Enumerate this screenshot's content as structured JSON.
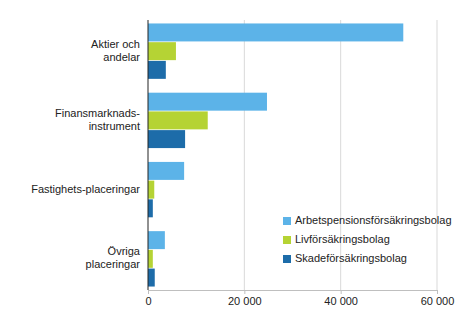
{
  "chart_data": {
    "type": "bar",
    "orientation": "horizontal",
    "categories": [
      "Aktier och andelar",
      "Finansmarknads-instrument",
      "Fastighets-placeringar",
      "Övriga placeringar"
    ],
    "series": [
      {
        "name": "Arbetspensionsförsäkringsbolag",
        "color": "#5cb3e8",
        "values": [
          53000,
          24700,
          7500,
          3500
        ]
      },
      {
        "name": "Livförsäkringsbolag",
        "color": "#b5d334",
        "values": [
          5800,
          12400,
          1300,
          1000
        ]
      },
      {
        "name": "Skadeförsäkringsbolag",
        "color": "#1d6ca9",
        "values": [
          3700,
          7700,
          1000,
          1400
        ]
      }
    ],
    "xlim": [
      0,
      60000
    ],
    "xticks": [
      0,
      {
        "value": 20000,
        "label": "20 000"
      },
      {
        "value": 40000,
        "label": "40 000"
      },
      {
        "value": 60000,
        "label": "60 000"
      }
    ],
    "grid": true,
    "legend": "lower right"
  }
}
